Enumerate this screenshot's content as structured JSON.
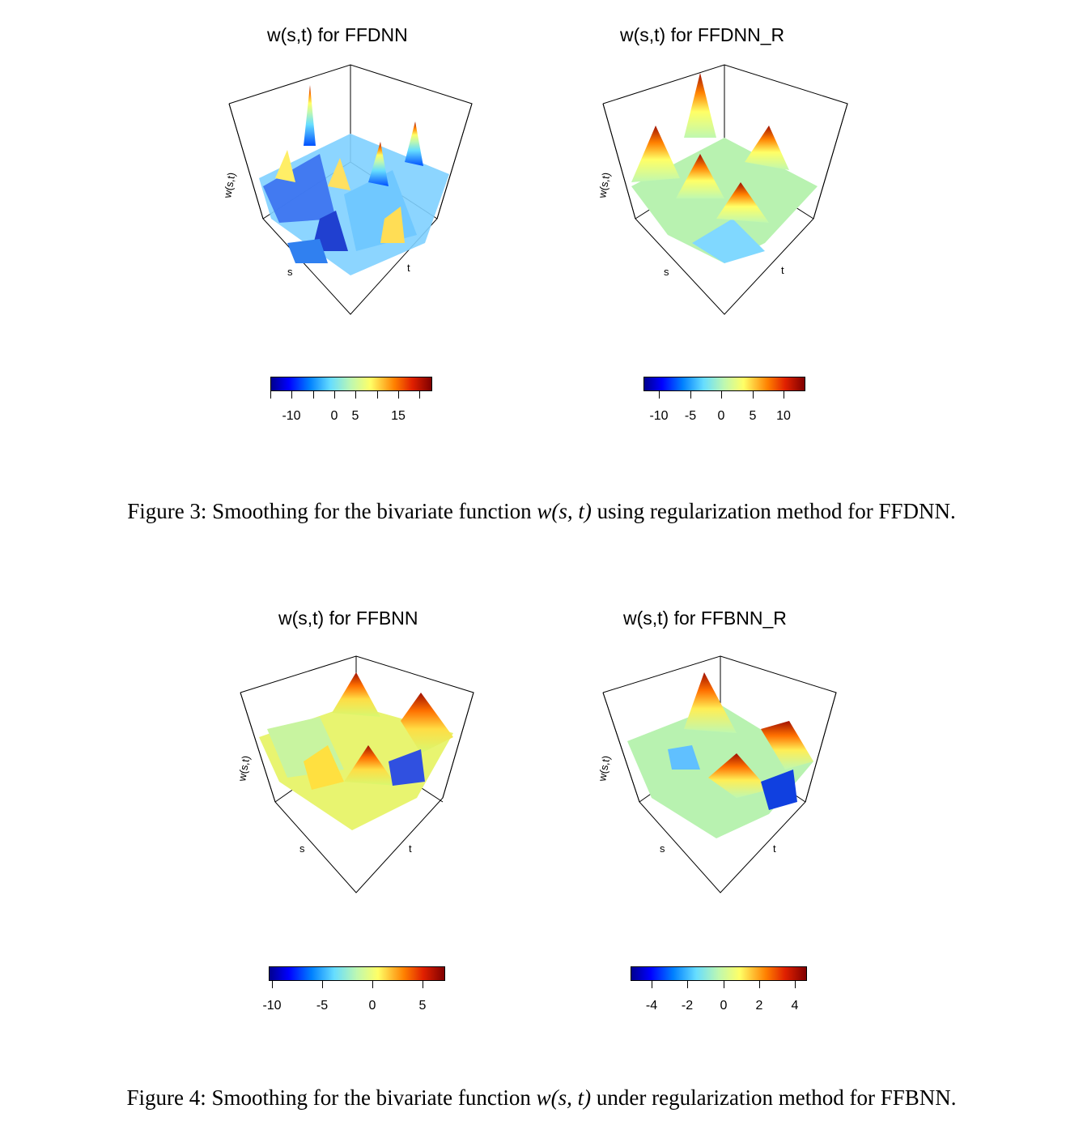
{
  "figures": [
    {
      "caption": {
        "prefix": "Figure 3: Smoothing for the bivariate function ",
        "math": "w(s, t)",
        "suffix": " using regularization method for FFDNN."
      },
      "panels": [
        {
          "title": "w(s,t) for FFDNN",
          "axis_labels": {
            "z": "w(s,t)",
            "s": "s",
            "t": "t"
          },
          "colorbar": {
            "min": -15,
            "max": 23,
            "ticks": [
              -15,
              -10,
              -5,
              0,
              5,
              10,
              15,
              20
            ],
            "tick_labels": [
              "-10",
              "0",
              "5",
              "15"
            ],
            "labeled_ticks": [
              -10,
              0,
              5,
              15
            ]
          }
        },
        {
          "title": "w(s,t) for FFDNN_R",
          "axis_labels": {
            "z": "w(s,t)",
            "s": "s",
            "t": "t"
          },
          "colorbar": {
            "min": -12.5,
            "max": 13.5,
            "ticks": [
              -10,
              -5,
              0,
              5,
              10
            ],
            "tick_labels": [
              "-10",
              "-5",
              "0",
              "5",
              "10"
            ],
            "labeled_ticks": [
              -10,
              -5,
              0,
              5,
              10
            ]
          }
        }
      ]
    },
    {
      "caption": {
        "prefix": "Figure 4: Smoothing for the bivariate function ",
        "math": "w(s, t)",
        "suffix": " under regularization method for FFBNN."
      },
      "panels": [
        {
          "title": "w(s,t) for FFBNN",
          "axis_labels": {
            "z": "w(s,t)",
            "s": "s",
            "t": "t"
          },
          "colorbar": {
            "min": -10.3,
            "max": 7.3,
            "ticks": [
              -10,
              -5,
              0,
              5
            ],
            "tick_labels": [
              "-10",
              "-5",
              "0",
              "5"
            ],
            "labeled_ticks": [
              -10,
              -5,
              0,
              5
            ]
          }
        },
        {
          "title": "w(s,t) for FFBNN_R",
          "axis_labels": {
            "z": "w(s,t)",
            "s": "s",
            "t": "t"
          },
          "colorbar": {
            "min": -5.2,
            "max": 4.7,
            "ticks": [
              -4,
              -2,
              0,
              2,
              4
            ],
            "tick_labels": [
              "-4",
              "-2",
              "0",
              "2",
              "4"
            ],
            "labeled_ticks": [
              -4,
              -2,
              0,
              2,
              4
            ]
          }
        }
      ]
    }
  ],
  "colormap": [
    "#00008f",
    "#0000ff",
    "#0080ff",
    "#66ddff",
    "#bff8b0",
    "#ffff66",
    "#ff8000",
    "#e02000",
    "#800000"
  ]
}
